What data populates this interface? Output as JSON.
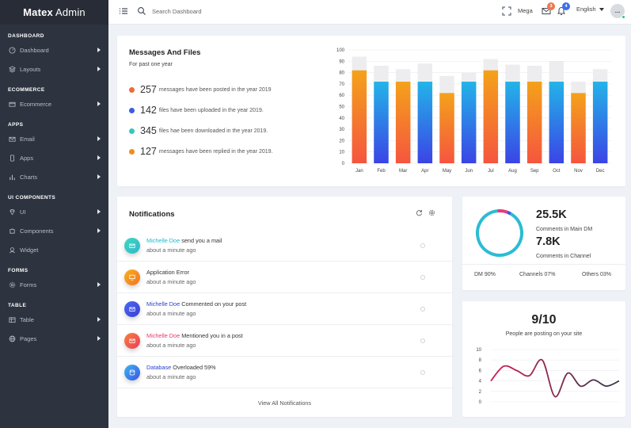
{
  "brand": {
    "name_bold": "Matex",
    "name_thin": "Admin"
  },
  "sidebar": {
    "sections": [
      {
        "title": "DASHBOARD",
        "items": [
          {
            "label": "Dashboard",
            "icon": "gauge-icon",
            "arrow": true
          },
          {
            "label": "Layouts",
            "icon": "layers-icon",
            "arrow": true
          }
        ]
      },
      {
        "title": "ECOMMERCE",
        "items": [
          {
            "label": "Ecommerce",
            "icon": "credit-card-icon",
            "arrow": true
          }
        ]
      },
      {
        "title": "APPS",
        "items": [
          {
            "label": "Email",
            "icon": "mail-icon",
            "arrow": true
          },
          {
            "label": "Apps",
            "icon": "phone-icon",
            "arrow": true
          },
          {
            "label": "Charts",
            "icon": "bar-chart-icon",
            "arrow": true
          }
        ]
      },
      {
        "title": "UI COMPONENTS",
        "items": [
          {
            "label": "UI",
            "icon": "diamond-icon",
            "arrow": true
          },
          {
            "label": "Components",
            "icon": "puzzle-icon",
            "arrow": true
          },
          {
            "label": "Widget",
            "icon": "widget-icon",
            "arrow": false
          }
        ]
      },
      {
        "title": "FORMS",
        "items": [
          {
            "label": "Forms",
            "icon": "gear-icon",
            "arrow": true
          }
        ]
      },
      {
        "title": "TABLE",
        "items": [
          {
            "label": "Table",
            "icon": "table-icon",
            "arrow": true
          },
          {
            "label": "Pages",
            "icon": "globe-icon",
            "arrow": true
          }
        ]
      }
    ]
  },
  "topbar": {
    "search_placeholder": "Search Dashboard",
    "mega_label": "Mega",
    "mail_badge": "3",
    "bell_badge": "4",
    "language": "English",
    "avatar_text": "…",
    "colors": {
      "mail_badge": "#f0764a",
      "bell_badge": "#3b6cf5"
    }
  },
  "messages": {
    "title": "Messages And Files",
    "subtitle": "For past one year",
    "stats": [
      {
        "num": "257",
        "text": "messages have been posted in the year 2019",
        "color": "#f06a35"
      },
      {
        "num": "142",
        "text": "files have been uploaded in the year 2019.",
        "color": "#3b5ce4"
      },
      {
        "num": "345",
        "text": "files hae been downloaded in the year 2019.",
        "color": "#30c9c0"
      },
      {
        "num": "127",
        "text": "messages have been replied in the year 2019.",
        "color": "#f28a20"
      }
    ]
  },
  "chart_data": [
    {
      "type": "bar",
      "categories": [
        "Jan",
        "Feb",
        "Mar",
        "Apr",
        "May",
        "Jun",
        "Jul",
        "Aug",
        "Sep",
        "Oct",
        "Nov",
        "Dec"
      ],
      "series": [
        {
          "values": [
            94,
            86,
            83,
            88,
            77,
            80,
            92,
            87,
            86,
            90,
            72,
            83
          ],
          "color": "#ededef"
        },
        {
          "values": [
            82,
            72,
            72,
            72,
            62,
            72,
            82,
            72,
            72,
            72,
            62,
            72
          ],
          "colors_by_category": [
            "orange",
            "blue",
            "orange",
            "blue",
            "orange",
            "blue",
            "orange",
            "blue",
            "orange",
            "blue",
            "orange",
            "blue"
          ]
        }
      ],
      "ylim": [
        0,
        100
      ],
      "yticks": [
        0,
        10,
        20,
        30,
        40,
        50,
        60,
        70,
        80,
        90,
        100
      ],
      "grid": true,
      "gradients": {
        "orange": [
          "#f4a21a",
          "#f5553f"
        ],
        "blue": [
          "#23b4e8",
          "#3b44e6"
        ]
      }
    },
    {
      "type": "line",
      "x": [
        0,
        1,
        2,
        3,
        4,
        5,
        6,
        7,
        8,
        9,
        10
      ],
      "series": [
        {
          "values": [
            4,
            6.8,
            6,
            5,
            8,
            1,
            5.5,
            3,
            4.2,
            3,
            4
          ]
        }
      ],
      "ylim": [
        0,
        10
      ],
      "yticks": [
        0,
        2,
        4,
        6,
        8,
        10
      ],
      "gradient": [
        "#d81e5b",
        "#2f3848"
      ]
    }
  ],
  "notifications": {
    "title": "Notifications",
    "items": [
      {
        "name": "Michelle Doe",
        "name_color": "#1fb8c9",
        "text": " send you a mail",
        "time": "about a minute ago",
        "icon_grad": [
          "#3fd6c1",
          "#30b8c8"
        ],
        "icon": "mail-icon"
      },
      {
        "name": "",
        "name_color": "#333",
        "text": "Application Error",
        "time": "about a minute ago",
        "icon_grad": [
          "#f7b21c",
          "#f27126"
        ],
        "icon": "monitor-icon"
      },
      {
        "name": "Michelle Doe",
        "name_color": "#2a3fcf",
        "text": " Commented on your post",
        "time": "about a minute ago",
        "icon_grad": [
          "#4c68f2",
          "#3a3fd6"
        ],
        "icon": "mail-icon"
      },
      {
        "name": "Michelle Doe",
        "name_color": "#e23a6e",
        "text": " Mentioned you in a post",
        "time": "about a minute ago",
        "icon_grad": [
          "#f7813a",
          "#ed3b5c"
        ],
        "icon": "mail-icon"
      },
      {
        "name": "Database",
        "name_color": "#2a3fcf",
        "text": " Overloaded 59%",
        "time": "about a minute ago",
        "icon_grad": [
          "#3fb6f0",
          "#3a54e6"
        ],
        "icon": "database-icon"
      }
    ],
    "view_all": "View All Notifications"
  },
  "donut_card": {
    "value1": "25.5K",
    "label1": "Comments in Main DM",
    "value2": "7.8K",
    "label2": "Comments in Channel",
    "legend": [
      "DM 90%",
      "Channels 07%",
      "Others 03%"
    ],
    "slices": [
      {
        "name": "DM",
        "value": 90,
        "color": "#2bbcd4"
      },
      {
        "name": "Channels",
        "value": 7,
        "color": "#e8397c"
      },
      {
        "name": "Others",
        "value": 3,
        "color": "#3b5ce4"
      }
    ]
  },
  "line_card": {
    "value": "9/10",
    "caption": "People are posting on your site"
  }
}
